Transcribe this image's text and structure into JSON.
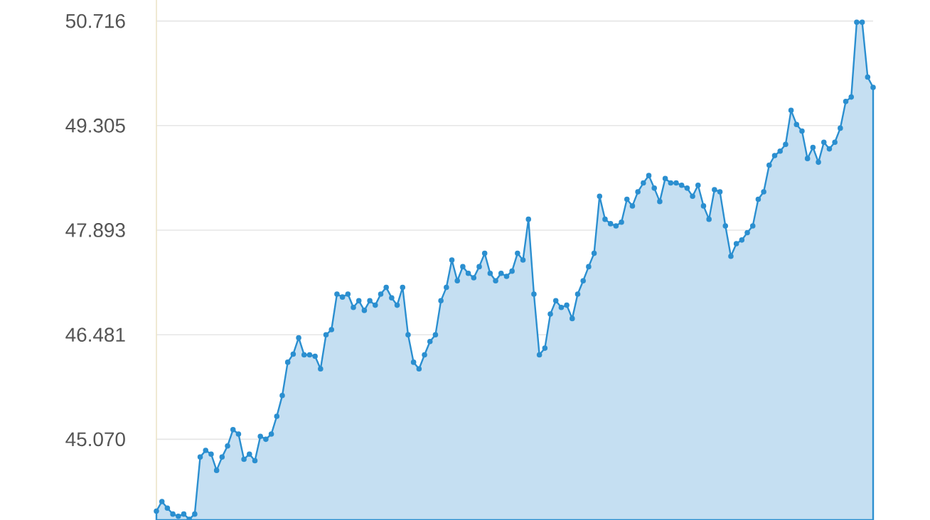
{
  "chart_data": {
    "type": "area",
    "categories": [
      null,
      null,
      null,
      null,
      null,
      null,
      null,
      null,
      null,
      null,
      null,
      null,
      null,
      null,
      null,
      null,
      null,
      null,
      null,
      null,
      null,
      null,
      null,
      null,
      null,
      null,
      null,
      null,
      null,
      null,
      null,
      null,
      null,
      null,
      null,
      null,
      null,
      null,
      null,
      null,
      null,
      null,
      null,
      null,
      null,
      null,
      null,
      null,
      null,
      null,
      null,
      null,
      null,
      null,
      null,
      null,
      null,
      null,
      null,
      null,
      null,
      null,
      null,
      null,
      null,
      null,
      null,
      null,
      null,
      null,
      null,
      null,
      null,
      null,
      null,
      null,
      null,
      null,
      null,
      null,
      null,
      null,
      null,
      null,
      null,
      null,
      null,
      null,
      null,
      null,
      null,
      null,
      null,
      null,
      null,
      null,
      null,
      null,
      null,
      null,
      null,
      null,
      null,
      null,
      null,
      null,
      null,
      null,
      null,
      null,
      null,
      null,
      null,
      null,
      null,
      null,
      null,
      null,
      null,
      null,
      null,
      null,
      null,
      null,
      null,
      null,
      null,
      null,
      null,
      null,
      null,
      null
    ],
    "values": [
      44.1,
      44.23,
      44.14,
      44.06,
      44.03,
      44.06,
      43.99,
      44.06,
      44.83,
      44.92,
      44.87,
      44.65,
      44.83,
      44.98,
      45.2,
      45.14,
      44.8,
      44.87,
      44.78,
      45.11,
      45.07,
      45.14,
      45.38,
      45.66,
      46.11,
      46.22,
      46.44,
      46.21,
      46.21,
      46.19,
      46.02,
      46.48,
      46.55,
      47.03,
      46.99,
      47.03,
      46.85,
      46.94,
      46.81,
      46.94,
      46.88,
      47.03,
      47.12,
      46.98,
      46.88,
      47.12,
      46.48,
      46.11,
      46.02,
      46.21,
      46.39,
      46.48,
      46.94,
      47.12,
      47.49,
      47.21,
      47.4,
      47.31,
      47.25,
      47.4,
      47.58,
      47.31,
      47.21,
      47.31,
      47.27,
      47.34,
      47.58,
      47.49,
      48.04,
      47.03,
      46.21,
      46.3,
      46.76,
      46.94,
      46.85,
      46.88,
      46.7,
      47.03,
      47.21,
      47.4,
      47.58,
      48.35,
      48.04,
      47.98,
      47.95,
      48.0,
      48.31,
      48.22,
      48.41,
      48.53,
      48.63,
      48.46,
      48.28,
      48.59,
      48.53,
      48.53,
      48.5,
      48.46,
      48.35,
      48.5,
      48.22,
      48.04,
      48.44,
      48.41,
      47.95,
      47.54,
      47.71,
      47.76,
      47.86,
      47.95,
      48.31,
      48.41,
      48.77,
      48.9,
      48.96,
      49.05,
      49.51,
      49.32,
      49.23,
      48.86,
      49.01,
      48.81,
      49.08,
      48.99,
      49.08,
      49.27,
      49.63,
      49.69,
      50.7,
      50.7,
      49.96,
      49.82
    ],
    "color": "#2b8fd0",
    "ylim": [
      43.98,
      51.0
    ],
    "yticks": [
      {
        "value": 45.07,
        "label": "45.070"
      },
      {
        "value": 46.481,
        "label": "46.481"
      },
      {
        "value": 47.893,
        "label": "47.893"
      },
      {
        "value": 49.305,
        "label": "49.305"
      },
      {
        "value": 50.716,
        "label": "50.716"
      }
    ],
    "tick_labels": "y",
    "grid": "y",
    "marker": "circle"
  }
}
